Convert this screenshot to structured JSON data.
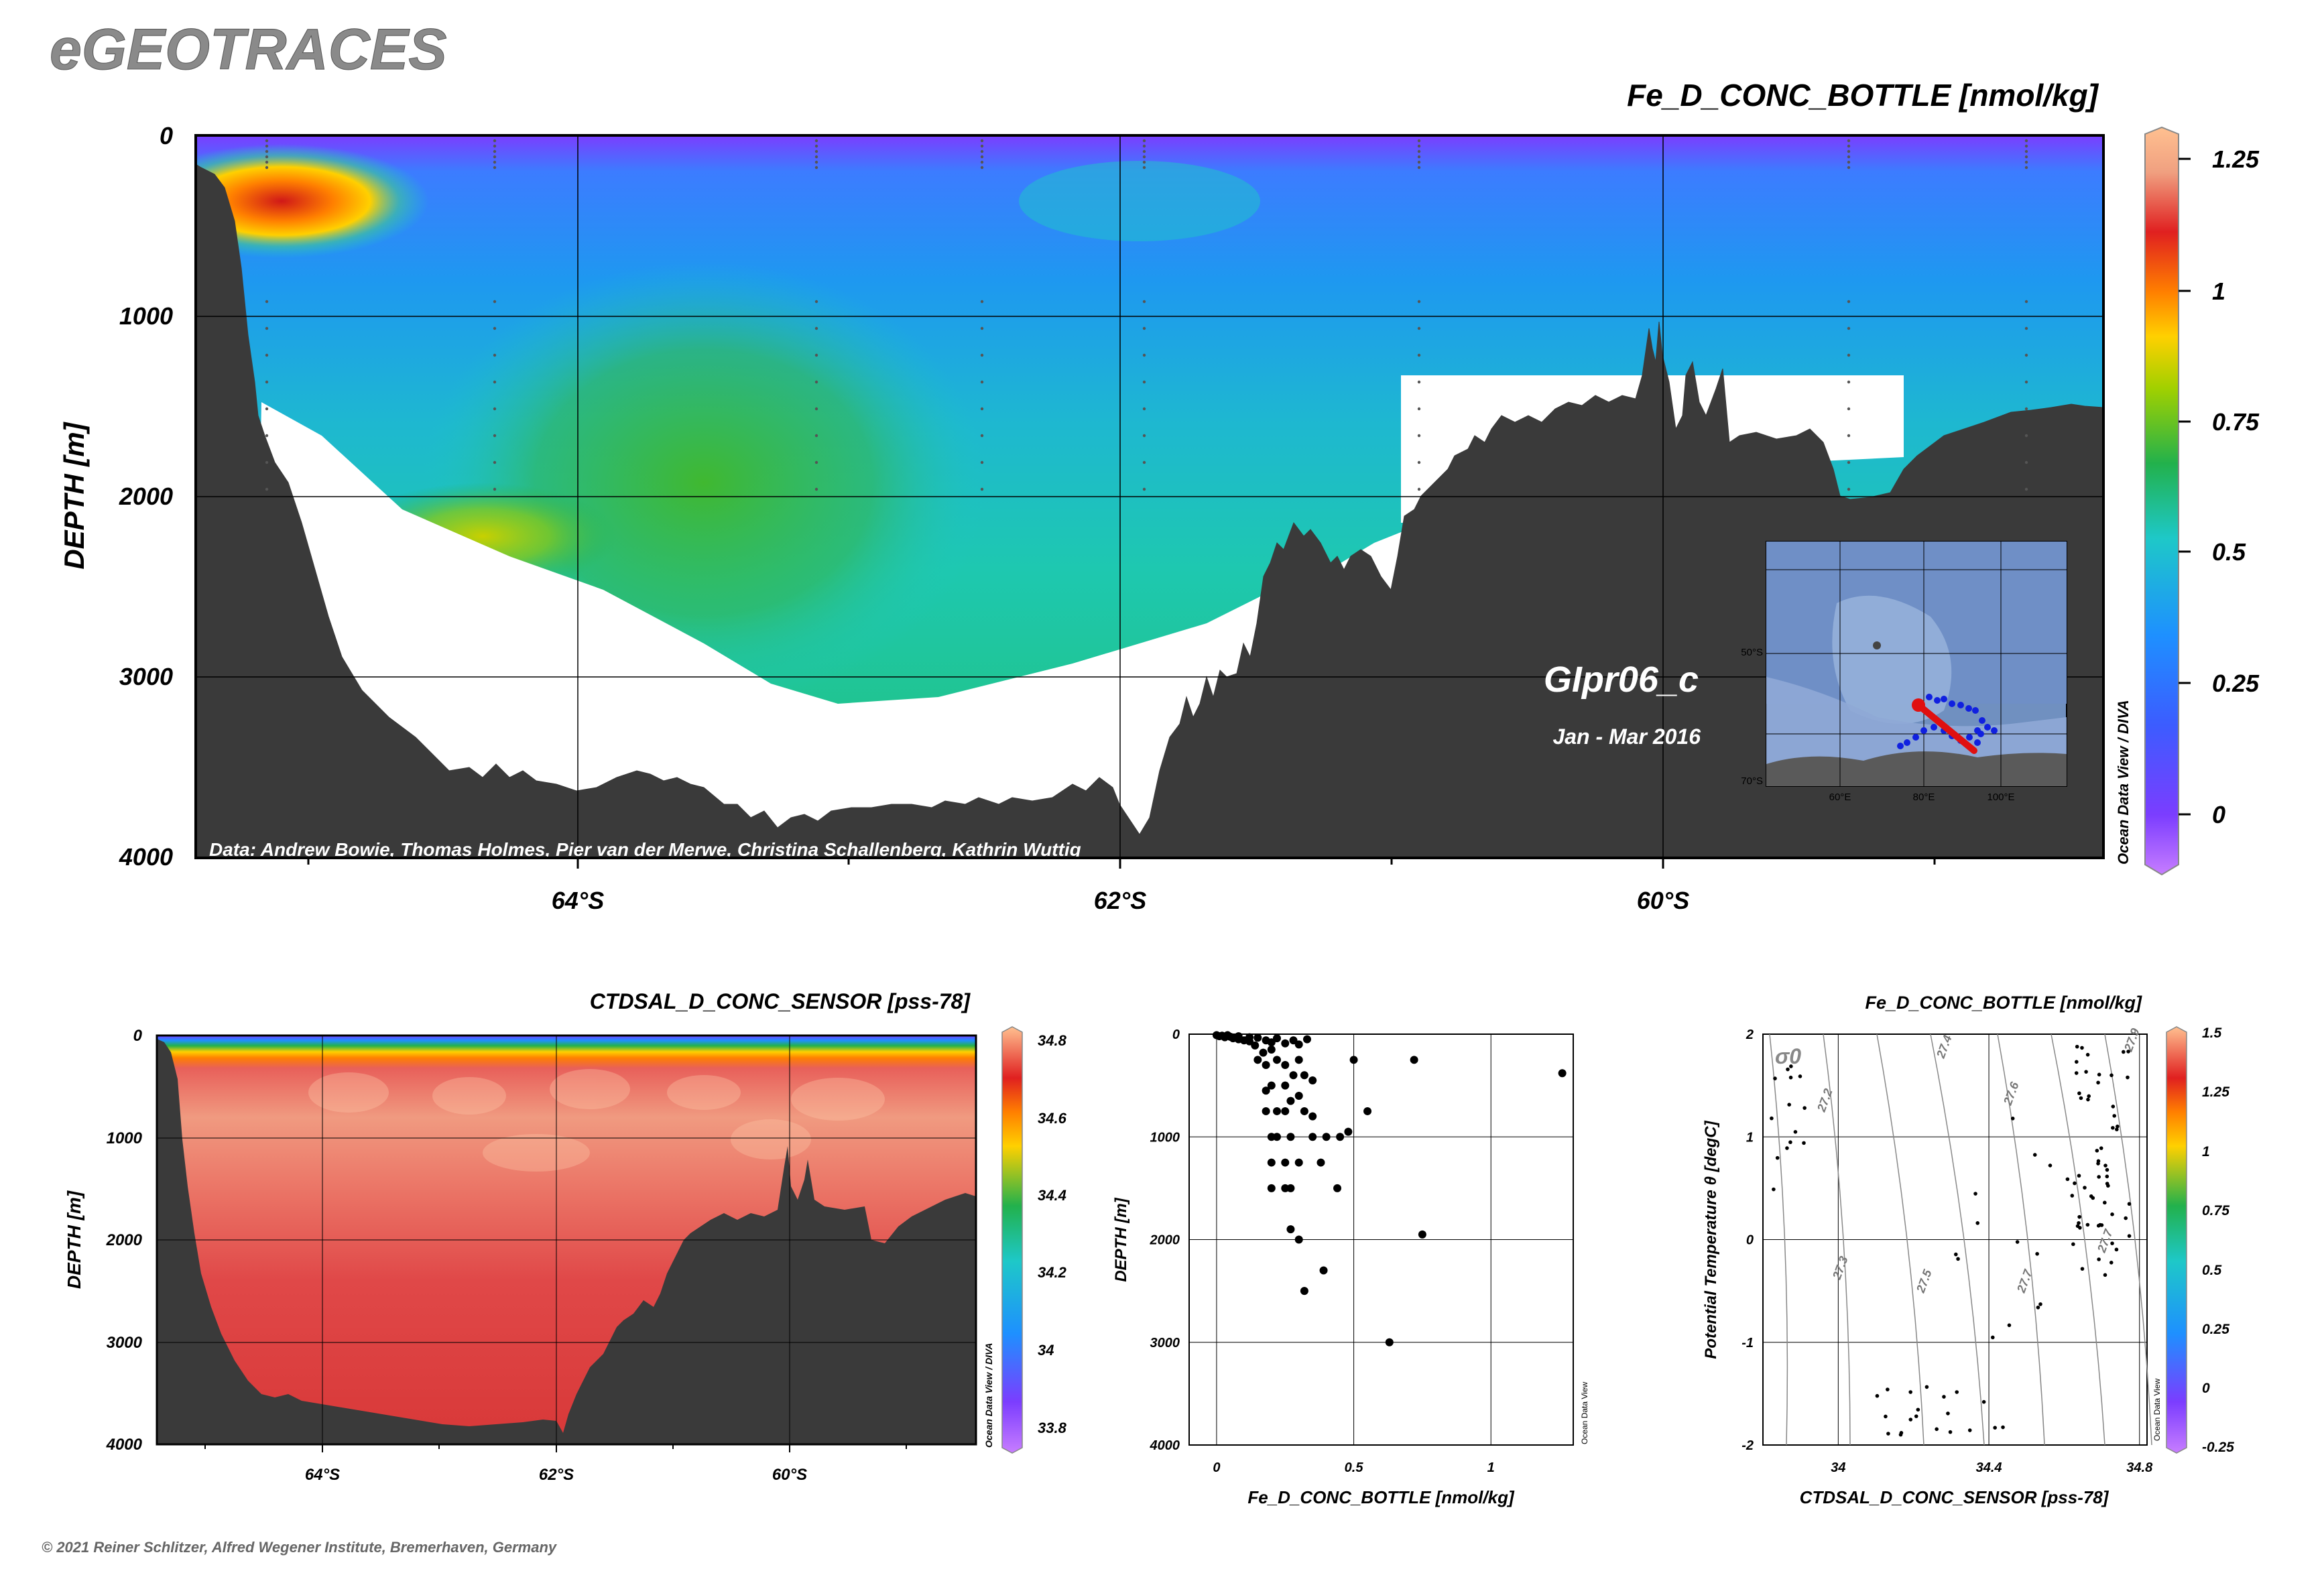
{
  "app_title": "eGEOTRACES",
  "copyright": "© 2021 Reiner Schlitzer, Alfred Wegener Institute, Bremerhaven, Germany",
  "colors": {
    "land": "#3a3a3a",
    "colormap": [
      "#c77dff",
      "#7b3dff",
      "#3c5cff",
      "#1e90ff",
      "#1ec8c8",
      "#22b14c",
      "#a0d000",
      "#ffd000",
      "#ff7f00",
      "#e02020",
      "#f0a080",
      "#ffc090"
    ]
  },
  "main_section": {
    "variable": "Fe_D_CONC_BOTTLE [nmol/kg]",
    "ylabel": "DEPTH [m]",
    "yticks": [
      "0",
      "1000",
      "2000",
      "3000",
      "4000"
    ],
    "xticks": [
      "64°S",
      "62°S",
      "60°S"
    ],
    "cruise": "GIpr06_c",
    "period": "Jan - Mar 2016",
    "credit": "Data: Andrew Bowie, Thomas Holmes, Pier van der Merwe, Christina Schallenberg, Kathrin Wuttig",
    "odv_label": "Ocean Data View / DIVA",
    "colorbar_ticks": [
      "1.25",
      "1",
      "0.75",
      "0.5",
      "0.25",
      "0"
    ],
    "inset_map": {
      "lat_labels": [
        "50°S",
        "70°S"
      ],
      "lon_labels": [
        "60°E",
        "80°E",
        "100°E"
      ]
    }
  },
  "salinity_section": {
    "variable": "CTDSAL_D_CONC_SENSOR [pss-78]",
    "ylabel": "DEPTH [m]",
    "yticks": [
      "0",
      "1000",
      "2000",
      "3000",
      "4000"
    ],
    "xticks": [
      "64°S",
      "62°S",
      "60°S"
    ],
    "odv_label": "Ocean Data View / DIVA",
    "colorbar_ticks": [
      "34.8",
      "34.6",
      "34.4",
      "34.2",
      "34",
      "33.8"
    ]
  },
  "chart_data": [
    {
      "type": "scatter",
      "title": "",
      "xlabel": "Fe_D_CONC_BOTTLE [nmol/kg]",
      "ylabel": "DEPTH [m]",
      "xlim": [
        -0.1,
        1.3
      ],
      "ylim": [
        4000,
        0
      ],
      "xticks": [
        "0",
        "0.5",
        "1"
      ],
      "yticks": [
        "0",
        "1000",
        "2000",
        "3000",
        "4000"
      ],
      "grid": true,
      "odv_label": "Ocean Data View",
      "points": [
        [
          0.0,
          10
        ],
        [
          0.01,
          20
        ],
        [
          0.02,
          15
        ],
        [
          0.03,
          30
        ],
        [
          0.05,
          25
        ],
        [
          0.06,
          40
        ],
        [
          0.08,
          50
        ],
        [
          0.1,
          60
        ],
        [
          0.12,
          70
        ],
        [
          0.04,
          10
        ],
        [
          0.08,
          20
        ],
        [
          0.12,
          30
        ],
        [
          0.15,
          35
        ],
        [
          0.18,
          60
        ],
        [
          0.2,
          80
        ],
        [
          0.22,
          40
        ],
        [
          0.25,
          90
        ],
        [
          0.28,
          60
        ],
        [
          0.3,
          100
        ],
        [
          0.33,
          50
        ],
        [
          0.14,
          110
        ],
        [
          0.2,
          150
        ],
        [
          0.17,
          180
        ],
        [
          0.22,
          250
        ],
        [
          0.25,
          300
        ],
        [
          0.3,
          250
        ],
        [
          0.15,
          250
        ],
        [
          0.18,
          300
        ],
        [
          0.5,
          250
        ],
        [
          0.72,
          250
        ],
        [
          0.28,
          400
        ],
        [
          0.32,
          400
        ],
        [
          0.35,
          450
        ],
        [
          0.2,
          500
        ],
        [
          0.25,
          500
        ],
        [
          0.18,
          550
        ],
        [
          0.3,
          600
        ],
        [
          0.27,
          650
        ],
        [
          0.22,
          750
        ],
        [
          0.18,
          750
        ],
        [
          0.25,
          750
        ],
        [
          0.32,
          750
        ],
        [
          0.35,
          800
        ],
        [
          0.55,
          750
        ],
        [
          0.2,
          1000
        ],
        [
          0.22,
          1000
        ],
        [
          0.27,
          1000
        ],
        [
          0.35,
          1000
        ],
        [
          0.4,
          1000
        ],
        [
          0.45,
          1000
        ],
        [
          0.48,
          950
        ],
        [
          0.2,
          1250
        ],
        [
          0.25,
          1250
        ],
        [
          0.3,
          1250
        ],
        [
          0.38,
          1250
        ],
        [
          0.2,
          1500
        ],
        [
          0.25,
          1500
        ],
        [
          0.27,
          1500
        ],
        [
          0.44,
          1500
        ],
        [
          0.27,
          1900
        ],
        [
          0.3,
          2000
        ],
        [
          0.75,
          1950
        ],
        [
          0.39,
          2300
        ],
        [
          0.32,
          2500
        ],
        [
          0.63,
          3000
        ],
        [
          1.26,
          380
        ]
      ]
    },
    {
      "type": "scatter",
      "title": "Fe_D_CONC_BOTTLE [nmol/kg]",
      "xlabel": "CTDSAL_D_CONC_SENSOR [pss-78]",
      "ylabel": "Potential Temperature θ [degC]",
      "xlim": [
        33.8,
        34.82
      ],
      "ylim": [
        -2,
        2
      ],
      "xticks": [
        "34",
        "34.4",
        "34.8"
      ],
      "yticks": [
        "2",
        "1",
        "0",
        "-1",
        "-2"
      ],
      "grid": true,
      "sigma_label": "σ0",
      "isopycnal_labels": [
        "27.2",
        "27.3",
        "27.4",
        "27.5",
        "27.6",
        "27.7",
        "27.9",
        "27.7"
      ],
      "odv_label": "Ocean Data View",
      "colorbar_ticks": [
        "1.5",
        "1.25",
        "1",
        "0.75",
        "0.5",
        "0.25",
        "0",
        "-0.25"
      ]
    }
  ]
}
